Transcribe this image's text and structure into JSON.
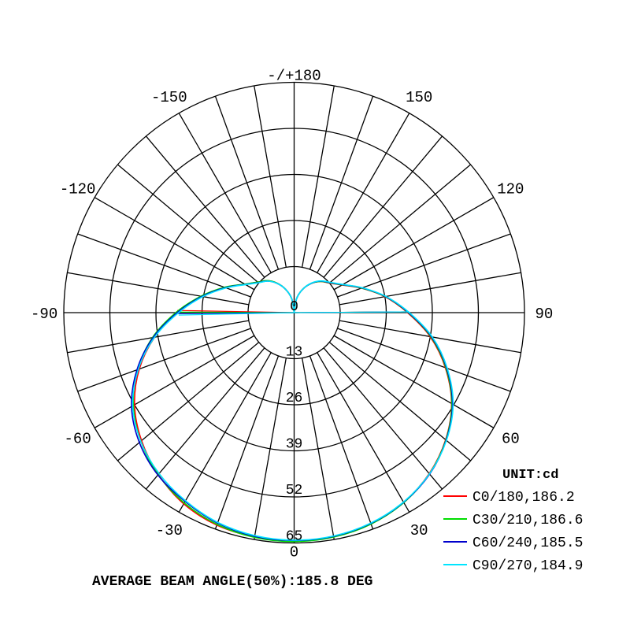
{
  "chart_data": {
    "type": "polar",
    "angle_tick_labels": [
      "-/+180",
      "150",
      "120",
      "90",
      "60",
      "30",
      "0",
      "-30",
      "-60",
      "-90",
      "-120",
      "-150"
    ],
    "angle_tick_values": [
      180,
      150,
      120,
      90,
      60,
      30,
      0,
      -30,
      -60,
      -90,
      -120,
      -150
    ],
    "radial_tick_labels": [
      "0",
      "13",
      "26",
      "39",
      "52",
      "65"
    ],
    "radial_range": [
      0,
      65
    ],
    "angle_grid_step_deg": 10,
    "grid": true,
    "unit_label": "UNIT:cd",
    "legend_placement": "bottom-right",
    "gamma": [
      0,
      10,
      20,
      30,
      40,
      50,
      60,
      70,
      80,
      90,
      100,
      110,
      120,
      130,
      140,
      150,
      160,
      170,
      180
    ],
    "series": [
      {
        "name": "C0/180,186.2",
        "color": "#ff0000",
        "right": [
          64.5,
          64.2,
          63.4,
          61.8,
          59.3,
          55.8,
          51.3,
          45.4,
          39.0,
          32.0,
          26.0,
          20.2,
          15.6,
          13.0,
          11.5,
          9.5,
          7.0,
          4.0,
          0
        ],
        "left": [
          64.5,
          64.3,
          63.8,
          62.3,
          59.6,
          56.2,
          52.0,
          46.5,
          40.0,
          33.0,
          26.5,
          20.8,
          16.0,
          13.4,
          11.8,
          9.6,
          7.0,
          4.0,
          0
        ]
      },
      {
        "name": "C30/210,186.6",
        "color": "#00dd00",
        "right": [
          64.6,
          64.3,
          63.5,
          61.9,
          59.4,
          55.9,
          51.4,
          45.6,
          39.2,
          32.2,
          26.1,
          20.3,
          15.7,
          13.1,
          11.5,
          9.5,
          7.0,
          4.0,
          0
        ],
        "left": [
          64.6,
          64.4,
          63.6,
          62.0,
          59.7,
          56.5,
          52.4,
          47.0,
          40.6,
          33.4,
          26.7,
          20.9,
          16.1,
          13.4,
          11.8,
          9.6,
          7.0,
          4.0,
          0
        ]
      },
      {
        "name": "C60/240,185.5",
        "color": "#0000cc",
        "right": [
          64.3,
          64.1,
          63.3,
          61.8,
          59.5,
          56.0,
          51.6,
          45.8,
          39.4,
          32.3,
          26.2,
          20.4,
          15.8,
          13.2,
          11.6,
          9.5,
          7.0,
          4.0,
          0
        ],
        "left": [
          64.3,
          64.1,
          63.2,
          61.5,
          59.8,
          57.0,
          53.0,
          47.2,
          40.4,
          33.0,
          26.4,
          20.6,
          15.9,
          13.2,
          11.6,
          9.5,
          7.0,
          4.0,
          0
        ]
      },
      {
        "name": "C90/270,184.9",
        "color": "#00e5ff",
        "right": [
          64.2,
          64.0,
          63.2,
          61.7,
          59.4,
          56.1,
          51.8,
          46.0,
          39.6,
          32.5,
          26.3,
          20.5,
          15.9,
          13.3,
          11.7,
          9.6,
          7.0,
          4.0,
          0
        ],
        "left": [
          64.2,
          63.9,
          63.0,
          61.3,
          59.3,
          56.5,
          52.6,
          46.8,
          40.0,
          32.6,
          26.1,
          20.4,
          15.8,
          13.1,
          11.6,
          9.5,
          7.0,
          4.0,
          0
        ]
      }
    ],
    "footer": "AVERAGE BEAM ANGLE(50%):185.8 DEG"
  }
}
